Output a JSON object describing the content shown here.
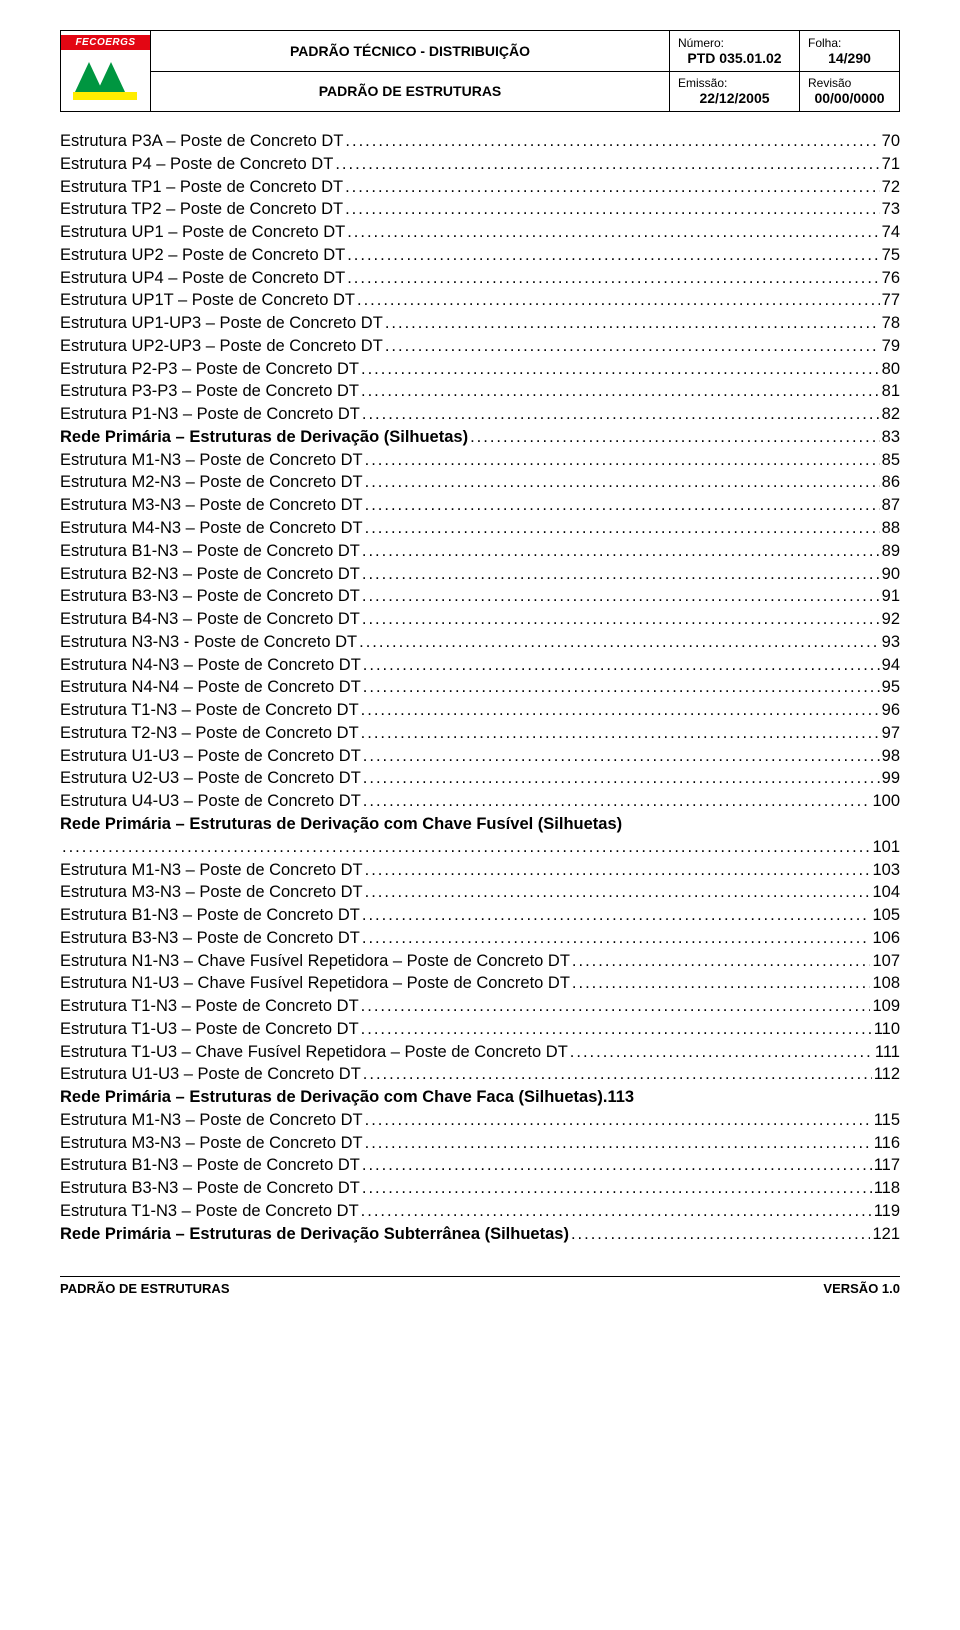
{
  "header": {
    "logo_text": "FECOERGS",
    "main_title": "PADRÃO TÉCNICO - DISTRIBUIÇÃO",
    "sub_title": "PADRÃO DE ESTRUTURAS",
    "numero_label": "Número:",
    "numero_val": "PTD 035.01.02",
    "folha_label": "Folha:",
    "folha_val": "14/290",
    "emissao_label": "Emissão:",
    "emissao_val": "22/12/2005",
    "revisao_label": "Revisão",
    "revisao_val": "00/00/0000"
  },
  "toc": [
    {
      "title": "Estrutura P3A – Poste de Concreto DT",
      "page": "70",
      "bold": false
    },
    {
      "title": "Estrutura P4 – Poste de Concreto DT",
      "page": "71",
      "bold": false
    },
    {
      "title": "Estrutura TP1 – Poste de Concreto DT",
      "page": "72",
      "bold": false
    },
    {
      "title": "Estrutura TP2 – Poste de Concreto DT",
      "page": "73",
      "bold": false
    },
    {
      "title": "Estrutura UP1 – Poste de Concreto DT",
      "page": "74",
      "bold": false
    },
    {
      "title": "Estrutura UP2 – Poste de Concreto DT",
      "page": "75",
      "bold": false
    },
    {
      "title": "Estrutura UP4 – Poste de Concreto DT",
      "page": "76",
      "bold": false
    },
    {
      "title": "Estrutura UP1T – Poste de Concreto DT",
      "page": "77",
      "bold": false
    },
    {
      "title": "Estrutura UP1-UP3 – Poste de Concreto DT",
      "page": "78",
      "bold": false
    },
    {
      "title": "Estrutura UP2-UP3 – Poste de Concreto DT",
      "page": "79",
      "bold": false
    },
    {
      "title": "Estrutura P2-P3 – Poste de Concreto DT",
      "page": "80",
      "bold": false
    },
    {
      "title": "Estrutura P3-P3 – Poste de Concreto DT",
      "page": "81",
      "bold": false
    },
    {
      "title": "Estrutura P1-N3 – Poste de Concreto DT",
      "page": "82",
      "bold": false
    },
    {
      "title": "Rede Primária – Estruturas de Derivação (Silhuetas)",
      "page": "83",
      "bold": true
    },
    {
      "title": "Estrutura M1-N3 – Poste de Concreto DT",
      "page": "85",
      "bold": false
    },
    {
      "title": "Estrutura M2-N3 – Poste de Concreto DT",
      "page": "86",
      "bold": false
    },
    {
      "title": "Estrutura M3-N3 – Poste de Concreto DT",
      "page": "87",
      "bold": false
    },
    {
      "title": "Estrutura M4-N3 – Poste de Concreto DT",
      "page": "88",
      "bold": false
    },
    {
      "title": "Estrutura B1-N3 – Poste de Concreto DT",
      "page": "89",
      "bold": false
    },
    {
      "title": "Estrutura B2-N3 – Poste de Concreto DT",
      "page": "90",
      "bold": false
    },
    {
      "title": "Estrutura B3-N3 – Poste de Concreto DT",
      "page": "91",
      "bold": false
    },
    {
      "title": "Estrutura B4-N3 – Poste de Concreto DT",
      "page": "92",
      "bold": false
    },
    {
      "title": "Estrutura N3-N3 - Poste de Concreto DT",
      "page": "93",
      "bold": false
    },
    {
      "title": "Estrutura N4-N3 – Poste de Concreto DT",
      "page": "94",
      "bold": false
    },
    {
      "title": "Estrutura N4-N4 – Poste de Concreto DT",
      "page": "95",
      "bold": false
    },
    {
      "title": "Estrutura T1-N3 – Poste de Concreto DT",
      "page": "96",
      "bold": false
    },
    {
      "title": "Estrutura T2-N3 – Poste de Concreto DT",
      "page": "97",
      "bold": false
    },
    {
      "title": "Estrutura U1-U3 – Poste de Concreto DT",
      "page": "98",
      "bold": false
    },
    {
      "title": "Estrutura U2-U3 – Poste de Concreto DT",
      "page": "99",
      "bold": false
    },
    {
      "title": "Estrutura U4-U3 – Poste de Concreto DT",
      "page": "100",
      "bold": false
    },
    {
      "title": "Rede Primária – Estruturas de Derivação com Chave Fusível (Silhuetas)",
      "page": "101",
      "bold": true,
      "wrap": true
    },
    {
      "title": "Estrutura M1-N3 – Poste de Concreto DT",
      "page": "103",
      "bold": false
    },
    {
      "title": "Estrutura M3-N3 – Poste de Concreto DT",
      "page": "104",
      "bold": false
    },
    {
      "title": "Estrutura B1-N3 – Poste de Concreto DT",
      "page": "105",
      "bold": false
    },
    {
      "title": "Estrutura B3-N3 – Poste de Concreto DT",
      "page": "106",
      "bold": false
    },
    {
      "title": "Estrutura N1-N3 – Chave Fusível Repetidora – Poste de Concreto DT",
      "page": "107",
      "bold": false
    },
    {
      "title": "Estrutura N1-U3 – Chave Fusível Repetidora – Poste de Concreto DT",
      "page": "108",
      "bold": false
    },
    {
      "title": "Estrutura T1-N3 – Poste de Concreto DT",
      "page": "109",
      "bold": false
    },
    {
      "title": "Estrutura T1-U3 – Poste de Concreto DT",
      "page": "110",
      "bold": false
    },
    {
      "title": "Estrutura T1-U3 – Chave Fusível Repetidora – Poste de Concreto DT",
      "page": "111",
      "bold": false
    },
    {
      "title": "Estrutura U1-U3 – Poste de Concreto DT",
      "page": "112",
      "bold": false
    },
    {
      "title": "Rede Primária – Estruturas de Derivação com Chave Faca (Silhuetas)",
      "page": ".113",
      "bold": true,
      "nodots": true
    },
    {
      "title": "Estrutura M1-N3 – Poste de Concreto DT",
      "page": "115",
      "bold": false
    },
    {
      "title": "Estrutura M3-N3 – Poste de Concreto DT",
      "page": "116",
      "bold": false
    },
    {
      "title": "Estrutura B1-N3 – Poste de Concreto DT",
      "page": "117",
      "bold": false
    },
    {
      "title": "Estrutura B3-N3 – Poste de Concreto DT",
      "page": "118",
      "bold": false
    },
    {
      "title": "Estrutura T1-N3 – Poste de Concreto DT",
      "page": "119",
      "bold": false
    },
    {
      "title": "Rede Primária – Estruturas de Derivação Subterrânea (Silhuetas)",
      "page": "121",
      "bold": true
    }
  ],
  "footer": {
    "left": "PADRÃO DE ESTRUTURAS",
    "right": "VERSÃO 1.0"
  },
  "colors": {
    "logo_red": "#e30613",
    "tri_green": "#009640",
    "tri_yellow": "#ffed00",
    "text": "#000000",
    "bg": "#ffffff"
  }
}
